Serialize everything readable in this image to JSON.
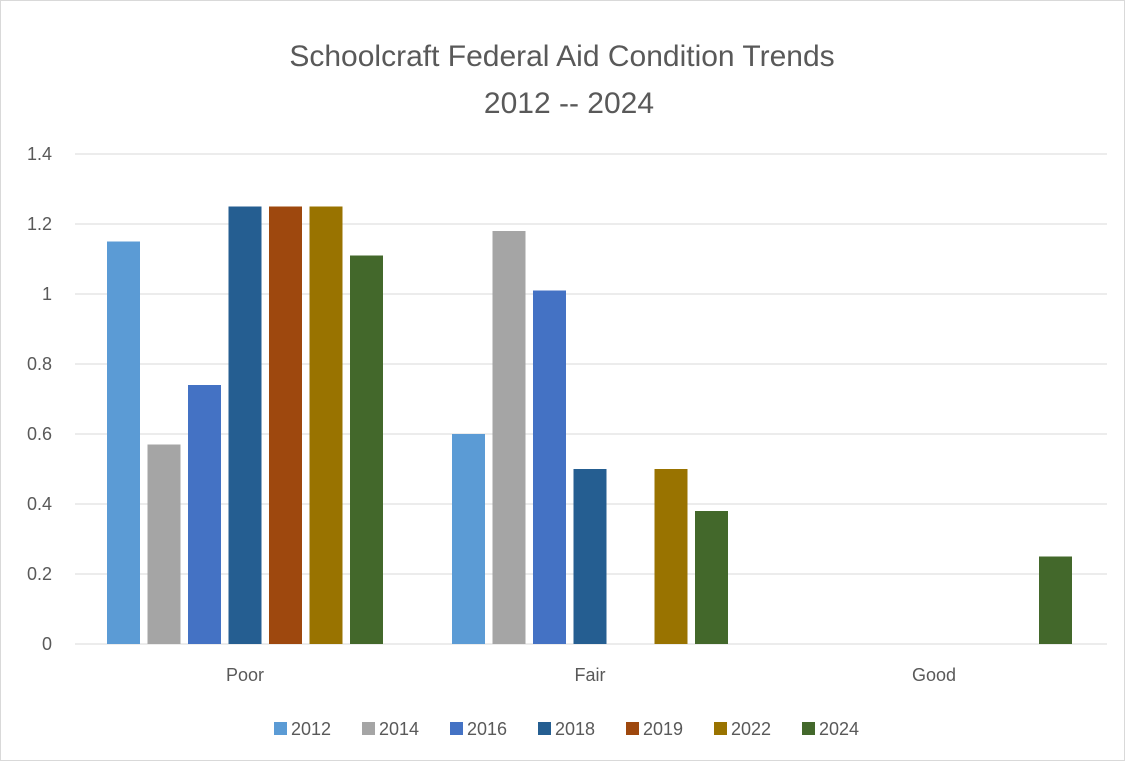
{
  "chart_data": {
    "type": "bar",
    "title": "Schoolcraft Federal Aid Condition Trends",
    "subtitle": "2012 -- 2024",
    "categories": [
      "Poor",
      "Fair",
      "Good"
    ],
    "series": [
      {
        "name": "2012",
        "color": "#5b9bd5",
        "values": [
          1.15,
          0.6,
          0
        ]
      },
      {
        "name": "2014",
        "color": "#a5a5a5",
        "values": [
          0.57,
          1.18,
          0
        ]
      },
      {
        "name": "2016",
        "color": "#4472c4",
        "values": [
          0.74,
          1.01,
          0
        ]
      },
      {
        "name": "2018",
        "color": "#255e91",
        "values": [
          1.25,
          0.5,
          0
        ]
      },
      {
        "name": "2019",
        "color": "#9e480e",
        "values": [
          1.25,
          0,
          0
        ]
      },
      {
        "name": "2022",
        "color": "#997300",
        "values": [
          1.25,
          0.5,
          0
        ]
      },
      {
        "name": "2024",
        "color": "#43682b",
        "values": [
          1.11,
          0.38,
          0.25
        ]
      }
    ],
    "ylim": [
      0,
      1.4
    ],
    "yticks": [
      "0",
      "0.2",
      "0.4",
      "0.6",
      "0.8",
      "1",
      "1.2",
      "1.4"
    ],
    "grid": true,
    "legend_position": "bottom"
  }
}
